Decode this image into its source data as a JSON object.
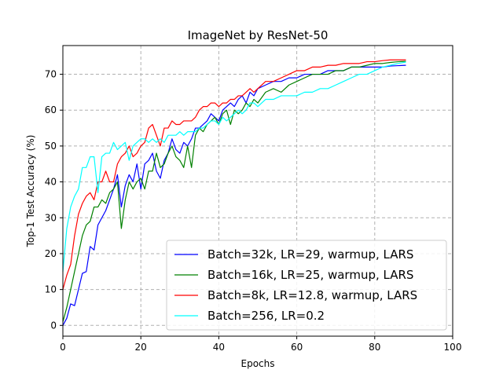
{
  "chart_data": {
    "type": "line",
    "title": "ImageNet by ResNet-50",
    "xlabel": "Epochs",
    "ylabel": "Top-1 Test Accuracy (%)",
    "xlim": [
      0,
      100
    ],
    "ylim": [
      -3,
      78
    ],
    "xticks": [
      0,
      20,
      40,
      60,
      80,
      100
    ],
    "yticks": [
      0,
      10,
      20,
      30,
      40,
      50,
      60,
      70
    ],
    "grid": true,
    "legend_position": "lower-right",
    "series": [
      {
        "name": "Batch=32k, LR=29, warmup, LARS",
        "color": "#0000ff",
        "x": [
          0,
          1,
          2,
          3,
          4,
          5,
          6,
          7,
          8,
          9,
          10,
          11,
          12,
          13,
          14,
          15,
          16,
          17,
          18,
          19,
          20,
          21,
          22,
          23,
          24,
          25,
          26,
          27,
          28,
          29,
          30,
          31,
          32,
          33,
          34,
          35,
          36,
          37,
          38,
          39,
          40,
          41,
          42,
          43,
          44,
          45,
          46,
          47,
          48,
          49,
          50,
          52,
          54,
          56,
          58,
          60,
          62,
          64,
          66,
          68,
          70,
          72,
          74,
          76,
          78,
          80,
          82,
          84,
          86,
          88
        ],
        "y": [
          0,
          2,
          6,
          5.5,
          10,
          14.5,
          15,
          22,
          21,
          28,
          30,
          32,
          35,
          38,
          42,
          33,
          39,
          42,
          40,
          45,
          38,
          45,
          46,
          48,
          43,
          41,
          46,
          48,
          52,
          49,
          48,
          51,
          50,
          52,
          55,
          55,
          56,
          57,
          59,
          58,
          57,
          60,
          61,
          62,
          61,
          63,
          64,
          62,
          65,
          64,
          66,
          67,
          68,
          68,
          69,
          69,
          70,
          70,
          70,
          71,
          71,
          71,
          72,
          72,
          72,
          72,
          72,
          72.3,
          72.4,
          72.5
        ]
      },
      {
        "name": "Batch=16k, LR=25, warmup, LARS",
        "color": "#008000",
        "x": [
          0,
          1,
          2,
          3,
          4,
          5,
          6,
          7,
          8,
          9,
          10,
          11,
          12,
          13,
          14,
          15,
          16,
          17,
          18,
          19,
          20,
          21,
          22,
          23,
          24,
          25,
          26,
          27,
          28,
          29,
          30,
          31,
          32,
          33,
          34,
          35,
          36,
          37,
          38,
          39,
          40,
          41,
          42,
          43,
          44,
          45,
          46,
          47,
          48,
          49,
          50,
          52,
          54,
          56,
          58,
          60,
          62,
          64,
          66,
          68,
          70,
          72,
          74,
          76,
          78,
          80,
          82,
          84,
          86,
          88
        ],
        "y": [
          1,
          5,
          10,
          15,
          20,
          25,
          28,
          29,
          33,
          33,
          35,
          34,
          37,
          38,
          40,
          27,
          35,
          40,
          38,
          40,
          41,
          38,
          43,
          43,
          48,
          44,
          45,
          48,
          50,
          47,
          46,
          44,
          50,
          44,
          53,
          55,
          54,
          56,
          57,
          58,
          56,
          59,
          60,
          56,
          60,
          59,
          60,
          62,
          61,
          63,
          62,
          65,
          66,
          65,
          67,
          68,
          69,
          70,
          70,
          70,
          71,
          71,
          72,
          72,
          72.5,
          73,
          73,
          73.3,
          73.5,
          73.6
        ]
      },
      {
        "name": "Batch=8k, LR=12.8, warmup, LARS",
        "color": "#ff0000",
        "x": [
          0,
          1,
          2,
          3,
          4,
          5,
          6,
          7,
          8,
          9,
          10,
          11,
          12,
          13,
          14,
          15,
          16,
          17,
          18,
          19,
          20,
          21,
          22,
          23,
          24,
          25,
          26,
          27,
          28,
          29,
          30,
          31,
          32,
          33,
          34,
          35,
          36,
          37,
          38,
          39,
          40,
          41,
          42,
          43,
          44,
          45,
          46,
          47,
          48,
          49,
          50,
          52,
          54,
          56,
          58,
          60,
          62,
          64,
          66,
          68,
          70,
          72,
          74,
          76,
          78,
          80,
          82,
          84,
          86,
          88
        ],
        "y": [
          10,
          14,
          17,
          25,
          31,
          34,
          36,
          37,
          35,
          40,
          40,
          43,
          40,
          40,
          45,
          47,
          48,
          50,
          47,
          48,
          50,
          51,
          55,
          56,
          53,
          50,
          55,
          55,
          57,
          56,
          56,
          57,
          57,
          57,
          58,
          60,
          61,
          61,
          62,
          62,
          61,
          62,
          62,
          63,
          63,
          64,
          64,
          65,
          66,
          65,
          66,
          68,
          68,
          69,
          70,
          71,
          71,
          72,
          72,
          72.5,
          72.5,
          73,
          73,
          73,
          73.5,
          73.5,
          73.8,
          74,
          74,
          74
        ]
      },
      {
        "name": "Batch=256, LR=0.2",
        "color": "#00ffff",
        "x": [
          0,
          1,
          2,
          3,
          4,
          5,
          6,
          7,
          8,
          9,
          10,
          11,
          12,
          13,
          14,
          15,
          16,
          17,
          18,
          19,
          20,
          21,
          22,
          23,
          24,
          25,
          26,
          27,
          28,
          29,
          30,
          31,
          32,
          33,
          34,
          35,
          36,
          37,
          38,
          39,
          40,
          41,
          42,
          43,
          44,
          45,
          46,
          47,
          48,
          49,
          50,
          52,
          54,
          56,
          58,
          60,
          62,
          64,
          66,
          68,
          70,
          72,
          74,
          76,
          78,
          80,
          82,
          84,
          86,
          88
        ],
        "y": [
          15,
          27,
          33,
          36,
          38,
          44,
          44,
          47,
          47,
          37,
          47,
          48,
          48,
          51,
          49,
          50,
          51,
          46,
          50,
          51,
          52,
          52,
          51,
          52,
          51,
          52,
          51,
          53,
          53,
          53,
          54,
          53,
          54,
          54,
          54,
          55,
          55,
          56,
          57,
          57,
          56,
          58,
          57,
          58,
          59,
          60,
          59,
          60,
          62,
          62,
          61,
          63,
          63,
          64,
          64,
          64,
          65,
          65,
          66,
          66,
          67,
          68,
          69,
          70,
          70,
          71,
          72,
          72.5,
          73,
          73.4
        ]
      }
    ]
  }
}
